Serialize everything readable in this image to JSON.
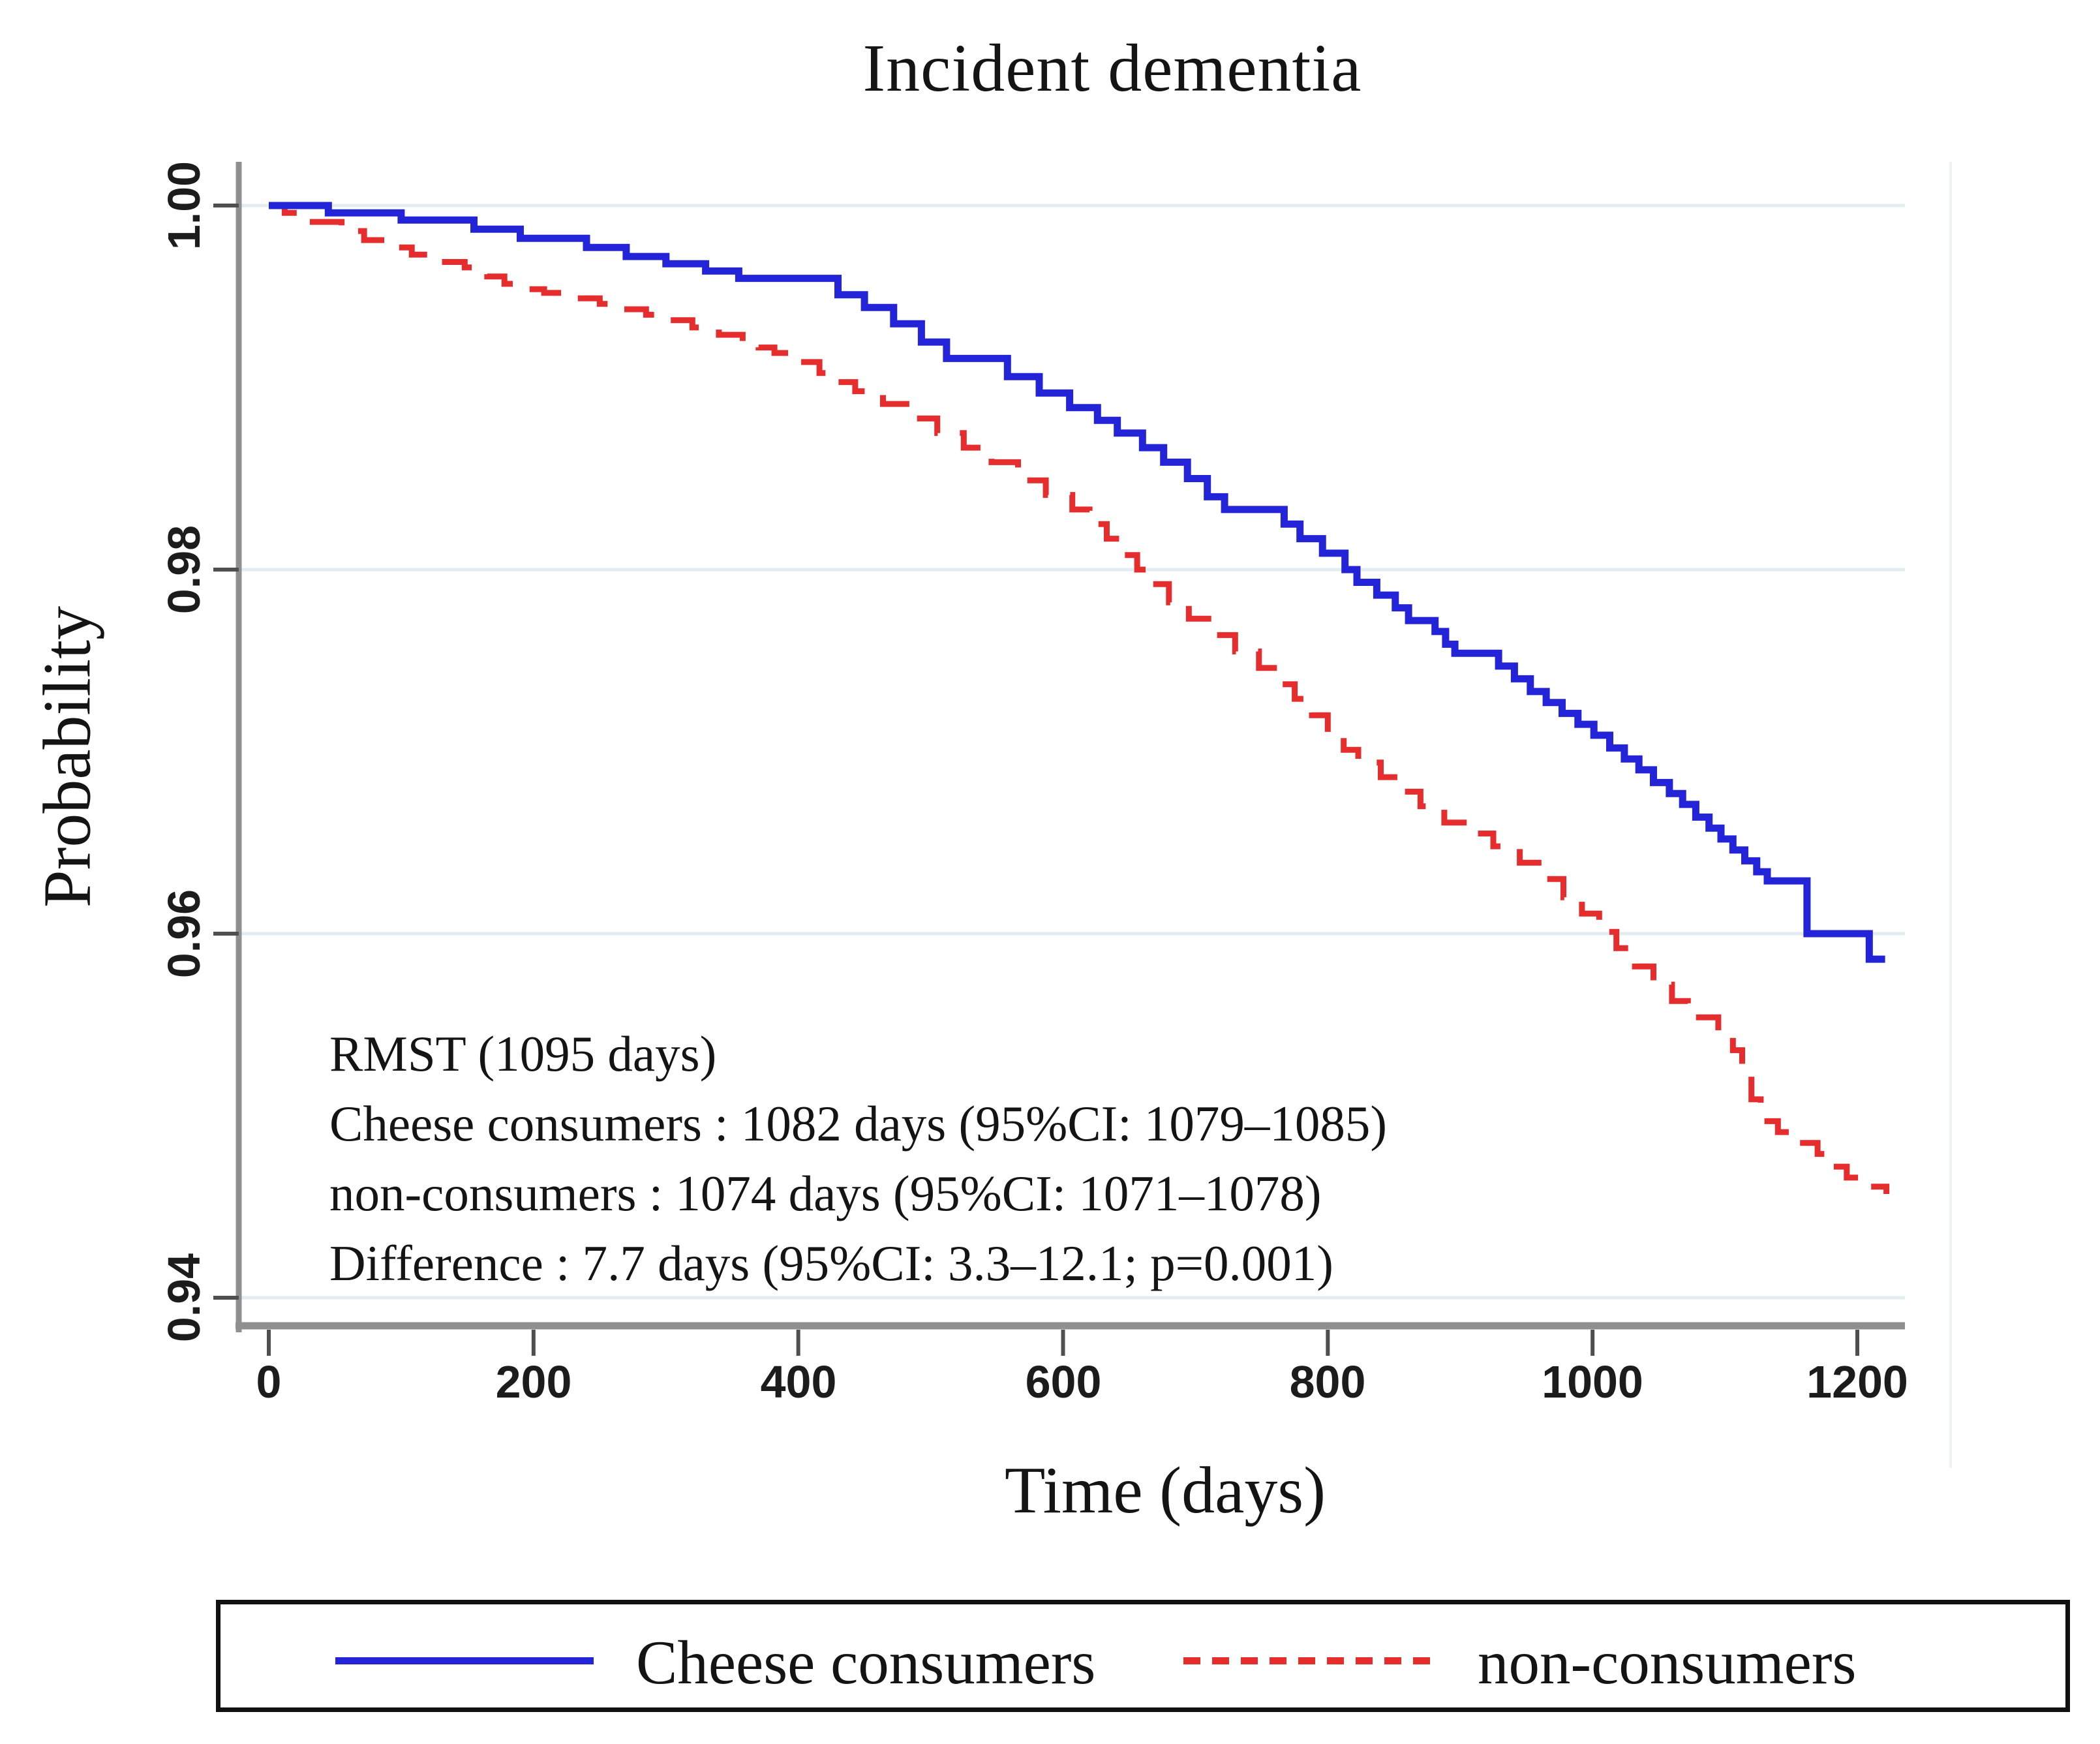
{
  "chart_data": {
    "type": "line",
    "subtype": "kaplan-meier-survival-step",
    "title": "Incident dementia",
    "xlabel": "Time (days)",
    "ylabel": "Probability",
    "x_ticks": [
      0,
      200,
      400,
      600,
      800,
      1000,
      1200
    ],
    "x_ticklabels": [
      "0",
      "200",
      "400",
      "600",
      "800",
      "1000",
      "1200"
    ],
    "y_ticks": [
      1.0,
      0.98,
      0.96,
      0.94
    ],
    "y_ticklabels": [
      "1.00",
      "0.98",
      "0.96",
      "0.94"
    ],
    "xlim": [
      -22,
      1237
    ],
    "ylim": [
      0.9385,
      1.0023
    ],
    "grid": "horizontal",
    "gridline_color": "#e2edf2",
    "axis_color": "#8f8f8f",
    "tick_color": "#4f4f4f",
    "legend_position": "bottom-box",
    "annotation": [
      "RMST (1095 days)",
      "Cheese consumers : 1082 days (95%CI: 1079–1085)",
      "non-consumers : 1074 days (95%CI: 1071–1078)",
      "Difference : 7.7 days (95%CI: 3.3–12.1; p=0.001)"
    ],
    "series": [
      {
        "name": "Cheese consumers",
        "color": "#2323d7",
        "line_style": "solid",
        "points": [
          [
            0,
            1.0
          ],
          [
            45,
            0.9996
          ],
          [
            100,
            0.9992
          ],
          [
            155,
            0.9987
          ],
          [
            190,
            0.9982
          ],
          [
            240,
            0.9977
          ],
          [
            270,
            0.9972
          ],
          [
            300,
            0.9968
          ],
          [
            330,
            0.9964
          ],
          [
            355,
            0.996
          ],
          [
            430,
            0.9951
          ],
          [
            450,
            0.9944
          ],
          [
            472,
            0.9935
          ],
          [
            493,
            0.9925
          ],
          [
            512,
            0.9916
          ],
          [
            558,
            0.9906
          ],
          [
            582,
            0.9897
          ],
          [
            605,
            0.9889
          ],
          [
            626,
            0.9882
          ],
          [
            641,
            0.9875
          ],
          [
            660,
            0.9867
          ],
          [
            676,
            0.9859
          ],
          [
            694,
            0.985
          ],
          [
            709,
            0.984
          ],
          [
            722,
            0.9833
          ],
          [
            767,
            0.9825
          ],
          [
            779,
            0.9817
          ],
          [
            796,
            0.9809
          ],
          [
            813,
            0.98
          ],
          [
            822,
            0.9793
          ],
          [
            837,
            0.9786
          ],
          [
            851,
            0.9779
          ],
          [
            861,
            0.9772
          ],
          [
            881,
            0.9766
          ],
          [
            889,
            0.9759
          ],
          [
            896,
            0.9754
          ],
          [
            929,
            0.9747
          ],
          [
            941,
            0.974
          ],
          [
            953,
            0.9733
          ],
          [
            965,
            0.9727
          ],
          [
            977,
            0.9721
          ],
          [
            989,
            0.9715
          ],
          [
            1001,
            0.9709
          ],
          [
            1013,
            0.9702
          ],
          [
            1024,
            0.9696
          ],
          [
            1035,
            0.969
          ],
          [
            1046,
            0.9683
          ],
          [
            1058,
            0.9677
          ],
          [
            1068,
            0.9671
          ],
          [
            1078,
            0.9664
          ],
          [
            1088,
            0.9658
          ],
          [
            1097,
            0.9652
          ],
          [
            1106,
            0.9646
          ],
          [
            1115,
            0.964
          ],
          [
            1124,
            0.9634
          ],
          [
            1132,
            0.9629
          ],
          [
            1162,
            0.96
          ],
          [
            1209,
            0.9586
          ],
          [
            1221,
            0.9586
          ]
        ]
      },
      {
        "name": "non-consumers",
        "color": "#e62d2d",
        "line_style": "dashed",
        "points": [
          [
            0,
            1.0
          ],
          [
            12,
            0.9996
          ],
          [
            30,
            0.9991
          ],
          [
            55,
            0.9986
          ],
          [
            72,
            0.9981
          ],
          [
            90,
            0.9977
          ],
          [
            108,
            0.9973
          ],
          [
            128,
            0.9969
          ],
          [
            148,
            0.9966
          ],
          [
            165,
            0.9961
          ],
          [
            178,
            0.9957
          ],
          [
            192,
            0.9954
          ],
          [
            208,
            0.9952
          ],
          [
            222,
            0.995
          ],
          [
            232,
            0.9949
          ],
          [
            250,
            0.9946
          ],
          [
            268,
            0.9943
          ],
          [
            285,
            0.994
          ],
          [
            300,
            0.9937
          ],
          [
            320,
            0.9933
          ],
          [
            340,
            0.9929
          ],
          [
            358,
            0.9925
          ],
          [
            370,
            0.9922
          ],
          [
            382,
            0.9919
          ],
          [
            400,
            0.9914
          ],
          [
            416,
            0.9908
          ],
          [
            430,
            0.9903
          ],
          [
            443,
            0.9898
          ],
          [
            464,
            0.9891
          ],
          [
            485,
            0.9883
          ],
          [
            505,
            0.9875
          ],
          [
            525,
            0.9867
          ],
          [
            546,
            0.9859
          ],
          [
            566,
            0.9849
          ],
          [
            587,
            0.9841
          ],
          [
            607,
            0.9833
          ],
          [
            620,
            0.9825
          ],
          [
            633,
            0.9817
          ],
          [
            645,
            0.9808
          ],
          [
            656,
            0.98
          ],
          [
            668,
            0.9792
          ],
          [
            680,
            0.9782
          ],
          [
            695,
            0.9773
          ],
          [
            712,
            0.9764
          ],
          [
            730,
            0.9755
          ],
          [
            748,
            0.9746
          ],
          [
            762,
            0.9737
          ],
          [
            775,
            0.9729
          ],
          [
            788,
            0.972
          ],
          [
            800,
            0.971
          ],
          [
            812,
            0.9701
          ],
          [
            823,
            0.9694
          ],
          [
            840,
            0.9686
          ],
          [
            855,
            0.9678
          ],
          [
            870,
            0.967
          ],
          [
            888,
            0.9661
          ],
          [
            905,
            0.9655
          ],
          [
            925,
            0.9648
          ],
          [
            945,
            0.9639
          ],
          [
            962,
            0.963
          ],
          [
            978,
            0.962
          ],
          [
            992,
            0.9611
          ],
          [
            1005,
            0.9601
          ],
          [
            1018,
            0.9592
          ],
          [
            1032,
            0.9582
          ],
          [
            1046,
            0.9572
          ],
          [
            1060,
            0.9563
          ],
          [
            1072,
            0.9554
          ],
          [
            1095,
            0.9545
          ],
          [
            1106,
            0.9536
          ],
          [
            1113,
            0.9524
          ],
          [
            1120,
            0.9509
          ],
          [
            1127,
            0.9497
          ],
          [
            1140,
            0.9491
          ],
          [
            1155,
            0.9485
          ],
          [
            1170,
            0.9479
          ],
          [
            1182,
            0.9472
          ],
          [
            1192,
            0.9466
          ],
          [
            1204,
            0.9461
          ],
          [
            1222,
            0.9457
          ]
        ]
      }
    ]
  }
}
